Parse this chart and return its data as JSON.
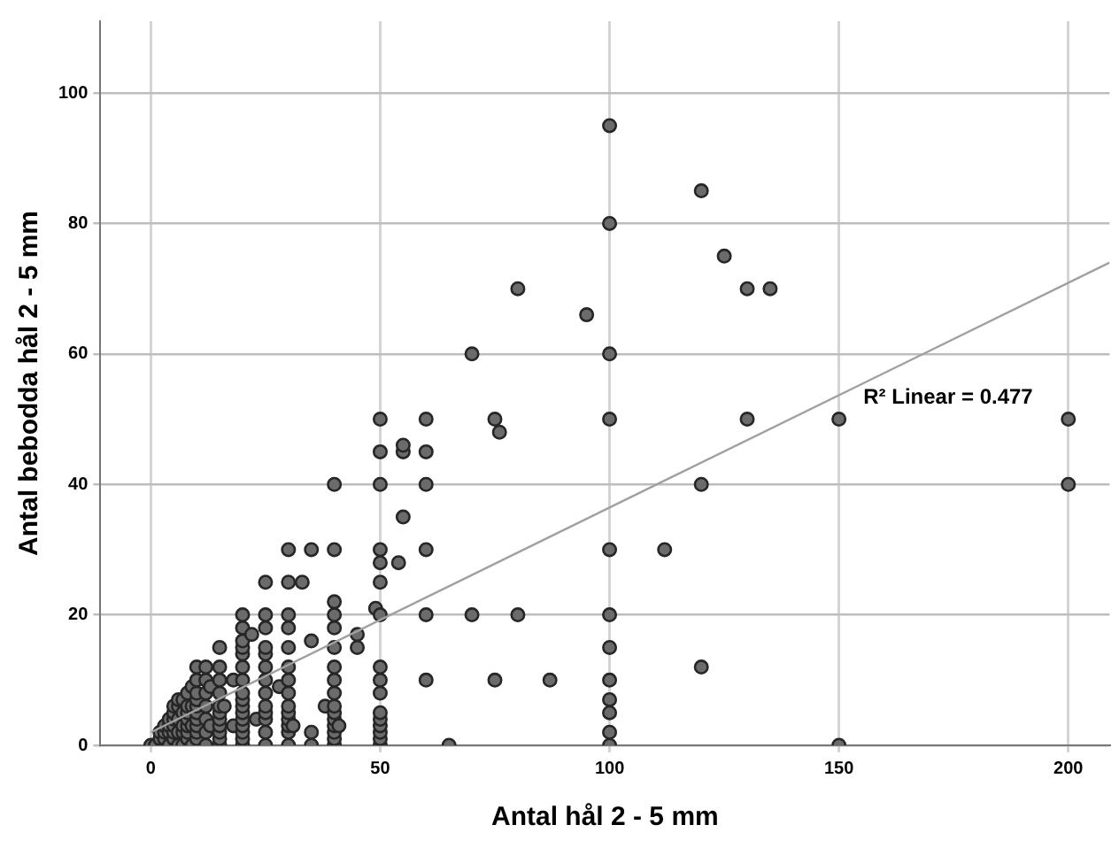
{
  "chart_data": {
    "type": "scatter",
    "xlabel": "Antal hål 2 - 5 mm",
    "ylabel": "Antal bebodda hål 2 - 5 mm",
    "xlim": [
      -11,
      209
    ],
    "xticks": [
      0,
      50,
      100,
      150,
      200
    ],
    "ylim": [
      0,
      111
    ],
    "yticks": [
      0,
      20,
      40,
      60,
      80,
      100
    ],
    "grid": true,
    "legend": false,
    "marker": "circle",
    "annotations": [
      "R² Linear = 0.477"
    ],
    "series": [
      {
        "color": "#6b6b6b",
        "x": [
          0,
          1,
          2,
          2,
          3,
          3,
          3,
          4,
          4,
          4,
          4,
          5,
          5,
          5,
          5,
          5,
          5,
          6,
          6,
          6,
          6,
          6,
          7,
          7,
          7,
          7,
          7,
          8,
          8,
          8,
          8,
          8,
          8,
          8,
          9,
          9,
          9,
          9,
          10,
          10,
          10,
          10,
          10,
          10,
          10,
          10,
          10,
          10,
          12,
          12,
          12,
          12,
          12,
          12,
          12,
          13,
          13,
          15,
          15,
          15,
          15,
          15,
          15,
          15,
          15,
          15,
          15,
          15,
          16,
          18,
          18,
          20,
          20,
          20,
          20,
          20,
          20,
          20,
          20,
          20,
          20,
          20,
          20,
          20,
          20,
          20,
          20,
          22,
          23,
          25,
          25,
          25,
          25,
          25,
          25,
          25,
          25,
          25,
          25,
          25,
          25,
          25,
          28,
          30,
          30,
          30,
          30,
          30,
          30,
          30,
          30,
          30,
          30,
          30,
          30,
          30,
          30,
          31,
          33,
          35,
          35,
          35,
          35,
          38,
          40,
          40,
          40,
          40,
          40,
          40,
          40,
          40,
          40,
          40,
          40,
          40,
          40,
          40,
          40,
          40,
          41,
          45,
          45,
          49,
          50,
          50,
          50,
          50,
          50,
          50,
          50,
          50,
          50,
          50,
          50,
          50,
          50,
          50,
          50,
          50,
          54,
          55,
          55,
          55,
          60,
          60,
          60,
          60,
          60,
          60,
          65,
          70,
          70,
          75,
          75,
          76,
          80,
          80,
          87,
          95,
          100,
          100,
          100,
          100,
          100,
          100,
          100,
          100,
          100,
          100,
          100,
          100,
          112,
          120,
          120,
          120,
          125,
          130,
          130,
          135,
          150,
          150,
          200,
          200
        ],
        "values": [
          0,
          0,
          1,
          2,
          1,
          2,
          3,
          0,
          2,
          3,
          4,
          1,
          2,
          3,
          4,
          5,
          6,
          0,
          2,
          4,
          6,
          7,
          0,
          2,
          3,
          5,
          7,
          1,
          2,
          3,
          4,
          5,
          6,
          8,
          0,
          3,
          6,
          9,
          1,
          2,
          3,
          4,
          5,
          6,
          7,
          8,
          10,
          12,
          0,
          2,
          4,
          6,
          8,
          10,
          12,
          3,
          9,
          0,
          1,
          2,
          3,
          4,
          5,
          6,
          8,
          10,
          12,
          15,
          6,
          3,
          10,
          0,
          1,
          2,
          3,
          4,
          5,
          6,
          7,
          8,
          10,
          12,
          14,
          15,
          16,
          18,
          20,
          17,
          4,
          0,
          2,
          4,
          5,
          6,
          8,
          10,
          12,
          14,
          15,
          18,
          20,
          25,
          9,
          0,
          2,
          3,
          4,
          5,
          6,
          8,
          10,
          12,
          15,
          18,
          20,
          25,
          30,
          3,
          25,
          0,
          2,
          16,
          30,
          6,
          0,
          1,
          2,
          3,
          4,
          5,
          6,
          8,
          10,
          12,
          15,
          18,
          20,
          22,
          30,
          40,
          3,
          15,
          17,
          21,
          0,
          1,
          2,
          3,
          4,
          5,
          8,
          10,
          12,
          20,
          25,
          28,
          30,
          40,
          45,
          50,
          28,
          35,
          45,
          46,
          10,
          20,
          30,
          40,
          45,
          50,
          0,
          20,
          60,
          10,
          50,
          48,
          20,
          70,
          10,
          66,
          0,
          2,
          5,
          7,
          10,
          15,
          20,
          30,
          50,
          60,
          80,
          95,
          30,
          12,
          40,
          85,
          75,
          50,
          70,
          70,
          0,
          50,
          40,
          50
        ]
      },
      {
        "type": "line",
        "color": "#a0a0a0",
        "marker": "none",
        "x": [
          0,
          209
        ],
        "values": [
          2,
          74
        ]
      }
    ]
  }
}
